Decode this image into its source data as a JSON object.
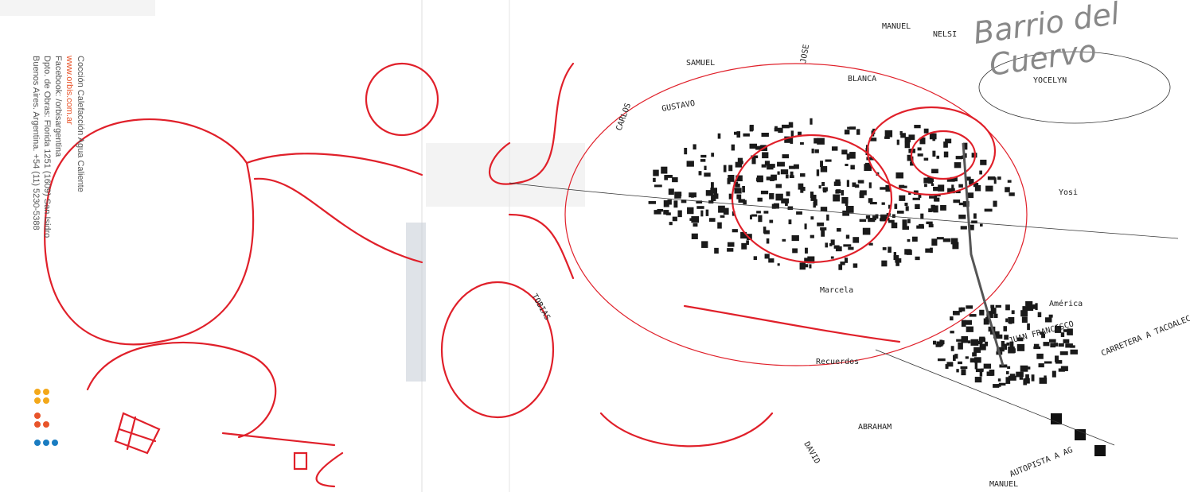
{
  "sidebar": {
    "lines": [
      "Cocción  Calefacción  Agua Caliente",
      "www.orbis.com.ar",
      "Facebook: /orbisargentina",
      "Dpto. de Obras: Florida 1251 (1609) San Isidro",
      "Buenos Aires. Argentina. +54 (11) 5230-5388"
    ]
  },
  "map": {
    "title": [
      "Barrio del",
      "Cuervo"
    ],
    "labels": [
      "MANUEL",
      "NELSI",
      "SAMUEL",
      "BLANCA",
      "GUSTAVO",
      "CARLOS",
      "JOSE",
      "YOCELYN",
      "Yosi",
      "América",
      "JUAN FRANCISCO",
      "CARRETERA A TACOALEC",
      "AUTOPISTA A AG",
      "MANUEL",
      "ABRAHAM",
      "DAVID",
      "Marcela",
      "Recuerdos",
      "TOBIAS"
    ]
  }
}
